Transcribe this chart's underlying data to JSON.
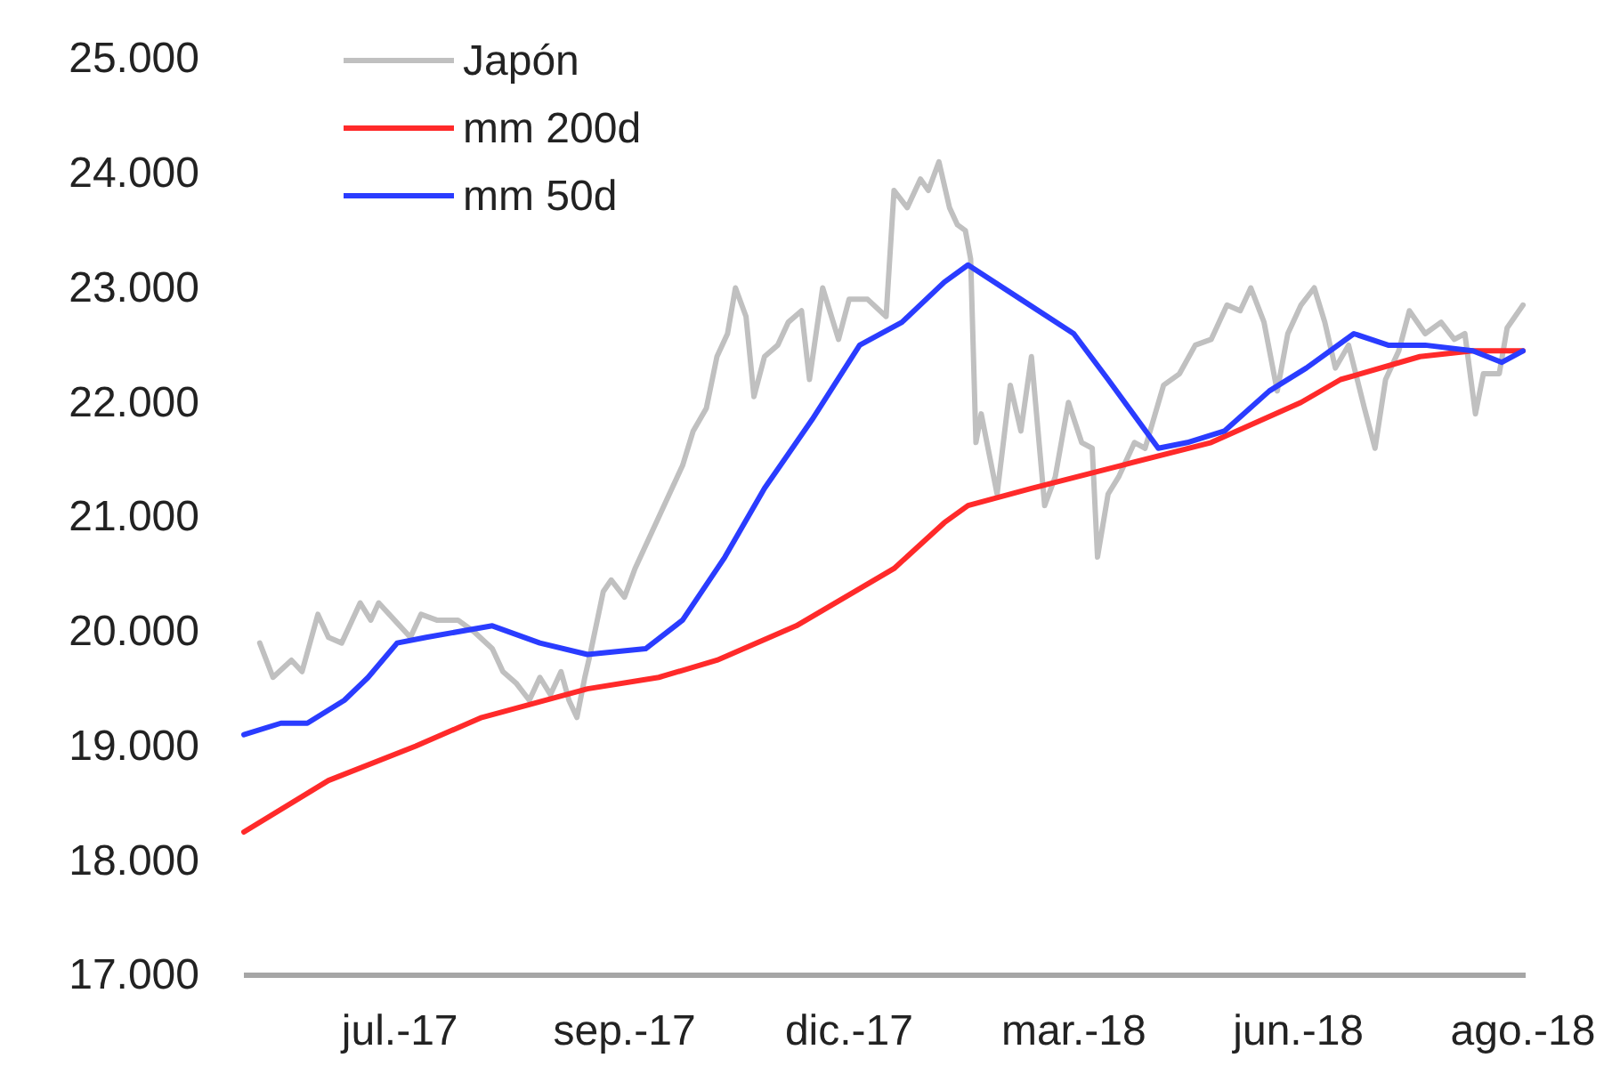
{
  "chart_data": {
    "type": "line",
    "legend": "top left",
    "grid": false,
    "marker": "none",
    "line_style": "solid",
    "xlim": [
      "2017-05-03",
      "2018-08-31"
    ],
    "xticks": [
      {
        "value": "2017-07-01",
        "label": "jul.-17"
      },
      {
        "value": "2017-09-24",
        "label": "sep.-17"
      },
      {
        "value": "2017-12-18",
        "label": "dic.-17"
      },
      {
        "value": "2018-03-13",
        "label": "mar.-18"
      },
      {
        "value": "2018-06-06",
        "label": "jun.-18"
      },
      {
        "value": "2018-08-30",
        "label": "ago.-18"
      }
    ],
    "ylim": [
      17000,
      25000
    ],
    "yticks": [
      {
        "value": 17000,
        "label": "17.000"
      },
      {
        "value": 18000,
        "label": "18.000"
      },
      {
        "value": 19000,
        "label": "19.000"
      },
      {
        "value": 20000,
        "label": "20.000"
      },
      {
        "value": 21000,
        "label": "21.000"
      },
      {
        "value": 22000,
        "label": "22.000"
      },
      {
        "value": 23000,
        "label": "23.000"
      },
      {
        "value": 24000,
        "label": "24.000"
      },
      {
        "value": 25000,
        "label": "25.000"
      }
    ],
    "series": [
      {
        "name": "Japón",
        "color": "#c0c0c0",
        "x": [
          "2017-05-09",
          "2017-05-14",
          "2017-05-21",
          "2017-05-25",
          "2017-05-31",
          "2017-06-04",
          "2017-06-09",
          "2017-06-16",
          "2017-06-20",
          "2017-06-23",
          "2017-06-29",
          "2017-07-05",
          "2017-07-09",
          "2017-07-15",
          "2017-07-23",
          "2017-07-29",
          "2017-08-05",
          "2017-08-09",
          "2017-08-14",
          "2017-08-19",
          "2017-08-23",
          "2017-08-27",
          "2017-08-31",
          "2017-09-03",
          "2017-09-06",
          "2017-09-09",
          "2017-09-11",
          "2017-09-16",
          "2017-09-19",
          "2017-09-24",
          "2017-09-28",
          "2017-10-02",
          "2017-10-07",
          "2017-10-12",
          "2017-10-16",
          "2017-10-20",
          "2017-10-25",
          "2017-10-29",
          "2017-11-02",
          "2017-11-05",
          "2017-11-09",
          "2017-11-12",
          "2017-11-16",
          "2017-11-21",
          "2017-11-25",
          "2017-11-30",
          "2017-12-03",
          "2017-12-08",
          "2017-12-14",
          "2017-12-18",
          "2017-12-25",
          "2018-01-01",
          "2018-01-04",
          "2018-01-09",
          "2018-01-14",
          "2018-01-17",
          "2018-01-21",
          "2018-01-25",
          "2018-01-28",
          "2018-01-31",
          "2018-02-02",
          "2018-02-04",
          "2018-02-06",
          "2018-02-12",
          "2018-02-17",
          "2018-02-21",
          "2018-02-25",
          "2018-03-02",
          "2018-03-06",
          "2018-03-11",
          "2018-03-16",
          "2018-03-20",
          "2018-03-22",
          "2018-03-26",
          "2018-03-30",
          "2018-04-05",
          "2018-04-09",
          "2018-04-16",
          "2018-04-22",
          "2018-04-28",
          "2018-05-04",
          "2018-05-10",
          "2018-05-15",
          "2018-05-19",
          "2018-05-24",
          "2018-05-29",
          "2018-06-02",
          "2018-06-07",
          "2018-06-12",
          "2018-06-16",
          "2018-06-20",
          "2018-06-25",
          "2018-07-01",
          "2018-07-05",
          "2018-07-09",
          "2018-07-14",
          "2018-07-18",
          "2018-07-24",
          "2018-07-30",
          "2018-08-04",
          "2018-08-08",
          "2018-08-12",
          "2018-08-15",
          "2018-08-21",
          "2018-08-24",
          "2018-08-30"
        ],
        "values": [
          19900,
          19600,
          19750,
          19650,
          20150,
          19950,
          19900,
          20250,
          20100,
          20250,
          20100,
          19950,
          20150,
          20100,
          20100,
          20000,
          19850,
          19650,
          19550,
          19400,
          19600,
          19450,
          19650,
          19400,
          19250,
          19600,
          19800,
          20350,
          20450,
          20300,
          20550,
          20750,
          21000,
          21250,
          21450,
          21750,
          21950,
          22400,
          22600,
          23000,
          22750,
          22050,
          22400,
          22500,
          22700,
          22800,
          22200,
          23000,
          22550,
          22900,
          22900,
          22750,
          23850,
          23700,
          23950,
          23850,
          24100,
          23700,
          23550,
          23500,
          23250,
          21650,
          21900,
          21200,
          22150,
          21750,
          22400,
          21100,
          21350,
          22000,
          21650,
          21600,
          20650,
          21200,
          21350,
          21650,
          21600,
          22150,
          22250,
          22500,
          22550,
          22850,
          22800,
          23000,
          22700,
          22100,
          22600,
          22850,
          23000,
          22700,
          22300,
          22500,
          21950,
          21600,
          22200,
          22450,
          22800,
          22600,
          22700,
          22550,
          22600,
          21900,
          22250,
          22250,
          22650,
          22850
        ]
      },
      {
        "name": "mm 200d",
        "color": "#ff2a2a",
        "x": [
          "2017-05-03",
          "2017-06-04",
          "2017-07-07",
          "2017-08-01",
          "2017-09-10",
          "2017-10-07",
          "2017-10-29",
          "2017-11-28",
          "2018-01-04",
          "2018-01-23",
          "2018-02-01",
          "2018-02-25",
          "2018-03-31",
          "2018-05-04",
          "2018-06-07",
          "2018-06-22",
          "2018-07-22",
          "2018-08-11",
          "2018-08-30"
        ],
        "values": [
          18250,
          18700,
          19000,
          19250,
          19500,
          19600,
          19750,
          20050,
          20550,
          20950,
          21100,
          21250,
          21450,
          21650,
          22000,
          22200,
          22400,
          22450,
          22450
        ]
      },
      {
        "name": "mm 50d",
        "color": "#2a3cff",
        "x": [
          "2017-05-03",
          "2017-05-17",
          "2017-05-27",
          "2017-06-10",
          "2017-06-19",
          "2017-06-30",
          "2017-07-11",
          "2017-08-05",
          "2017-08-23",
          "2017-09-10",
          "2017-10-02",
          "2017-10-16",
          "2017-11-01",
          "2017-11-16",
          "2017-12-04",
          "2017-12-22",
          "2018-01-07",
          "2018-01-23",
          "2018-02-01",
          "2018-02-21",
          "2018-03-13",
          "2018-03-26",
          "2018-04-14",
          "2018-04-25",
          "2018-05-09",
          "2018-05-26",
          "2018-06-09",
          "2018-06-27",
          "2018-07-10",
          "2018-07-24",
          "2018-08-11",
          "2018-08-22",
          "2018-08-30"
        ],
        "values": [
          19100,
          19200,
          19200,
          19400,
          19600,
          19900,
          19950,
          20050,
          19900,
          19800,
          19850,
          20100,
          20650,
          21250,
          21850,
          22500,
          22700,
          23050,
          23200,
          22900,
          22600,
          22200,
          21600,
          21650,
          21750,
          22100,
          22300,
          22600,
          22500,
          22500,
          22450,
          22350,
          22450
        ]
      }
    ]
  }
}
